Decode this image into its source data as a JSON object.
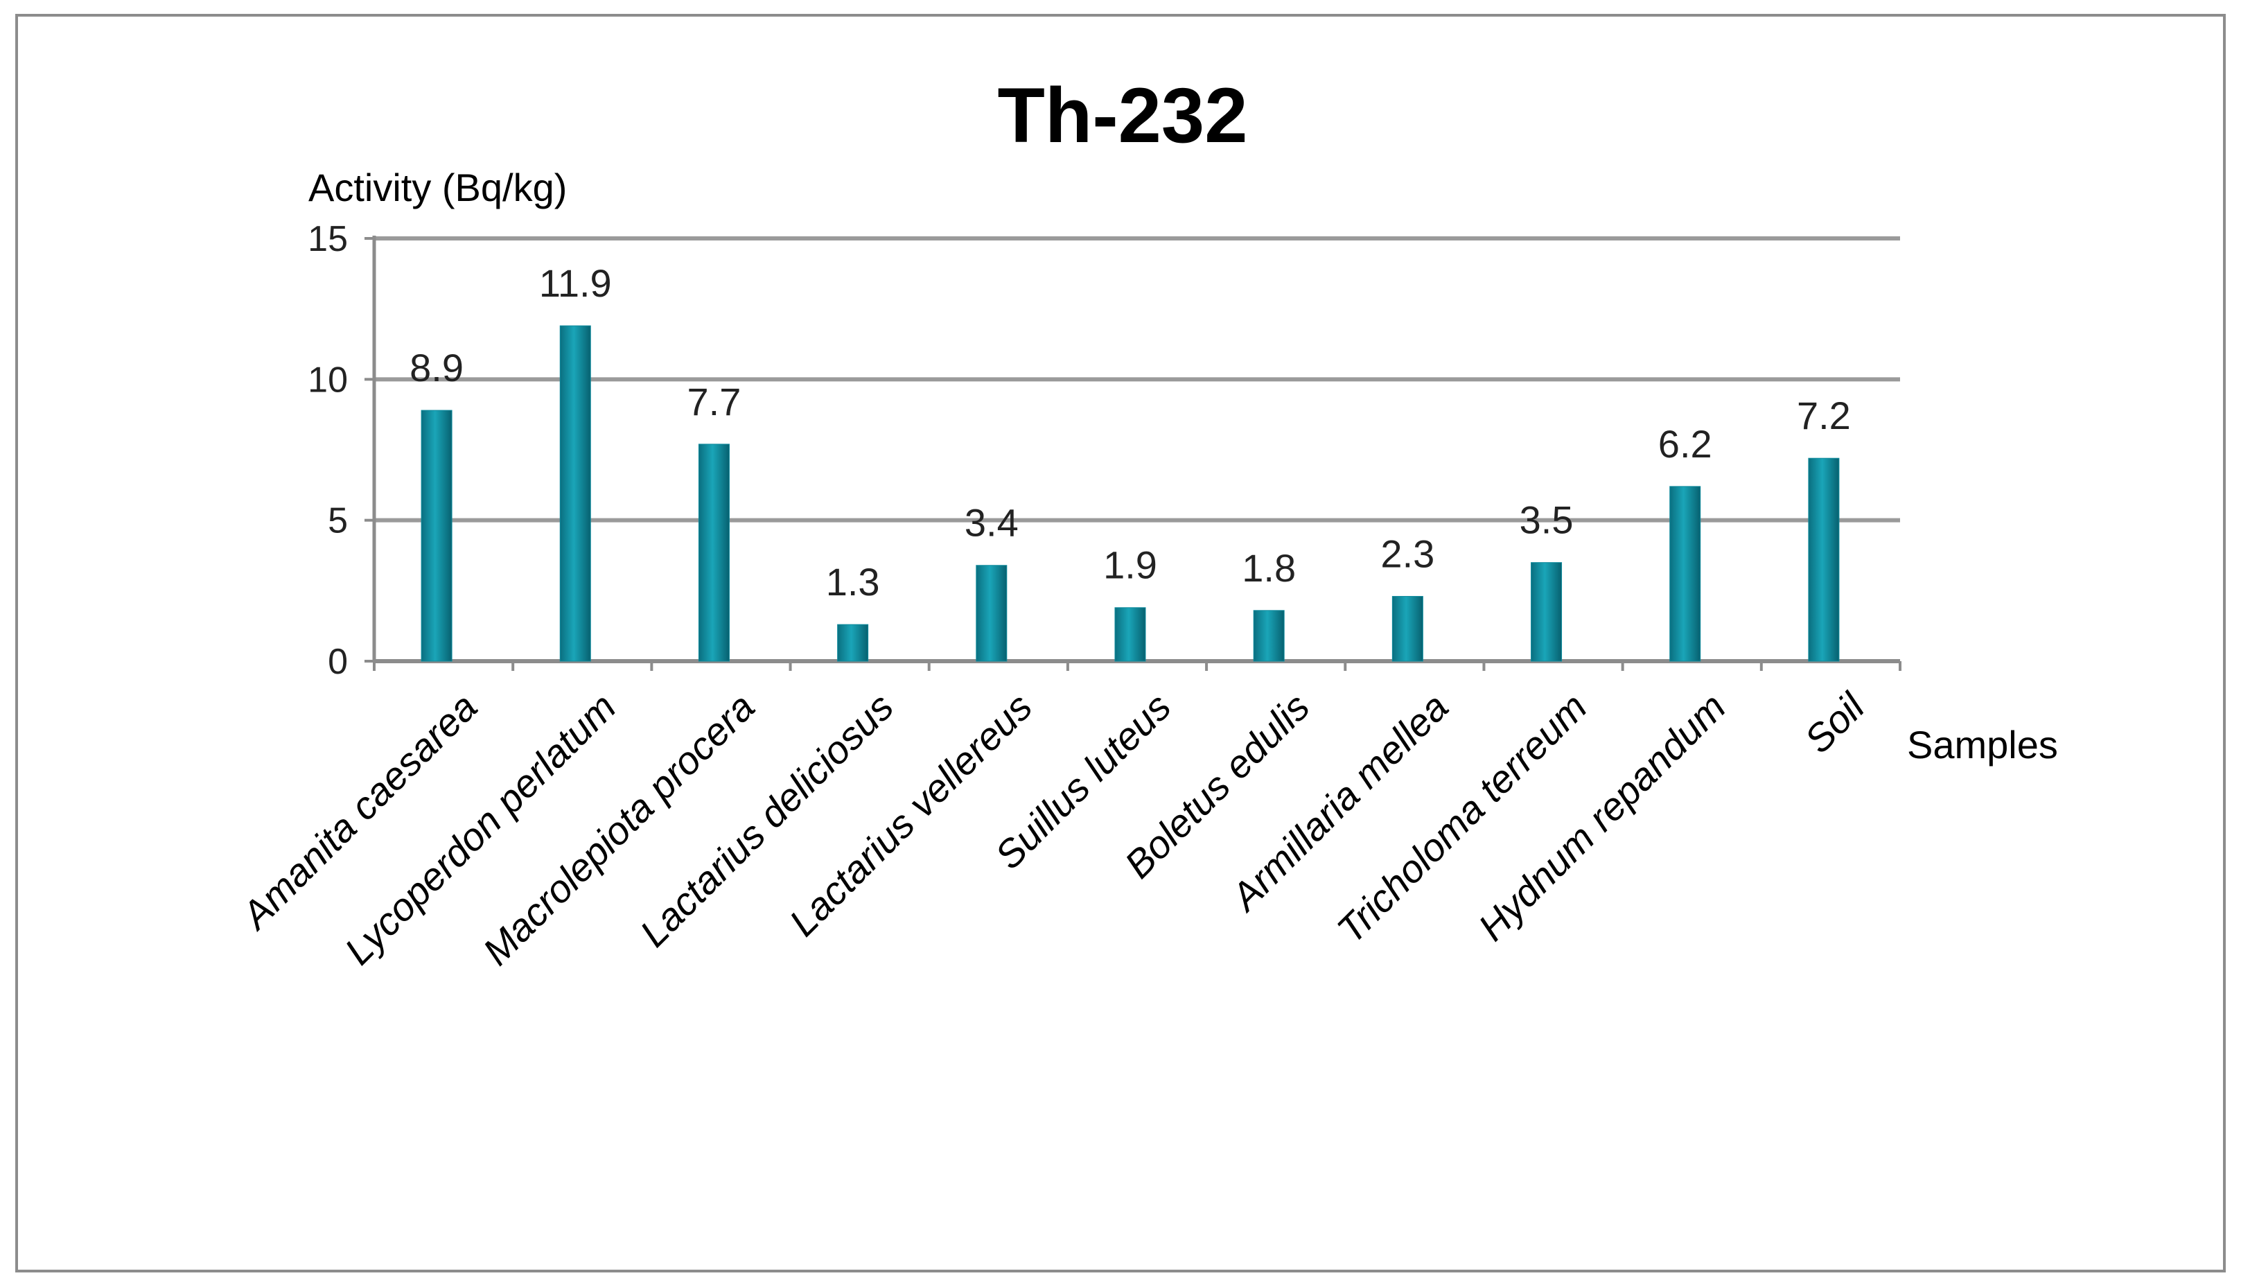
{
  "chart_data": {
    "type": "bar",
    "title": "Th-232",
    "ylabel": "Activity (Bq/kg)",
    "xlabel": "Samples",
    "categories": [
      "Amanita caesarea",
      "Lycoperdon perlatum",
      "Macrolepiota procera",
      "Lactarius deliciosus",
      "Lactarius vellereus",
      "Suillus luteus",
      "Boletus edulis",
      "Armillaria mellea",
      "Tricholoma terreum",
      "Hydnum repandum",
      "Soil"
    ],
    "values": [
      8.9,
      11.9,
      7.7,
      1.3,
      3.4,
      1.9,
      1.8,
      2.3,
      3.5,
      6.2,
      7.2
    ],
    "data_labels": [
      "8.9",
      "11.9",
      "7.7",
      "1.3",
      "3.4",
      "1.9",
      "1.8",
      "2.3",
      "3.5",
      "6.2",
      "7.2"
    ],
    "ylim": [
      0,
      15
    ],
    "yticks": [
      0,
      5,
      10,
      15
    ],
    "grid": true,
    "legend": false,
    "bar_color": "#0e8a9c"
  }
}
